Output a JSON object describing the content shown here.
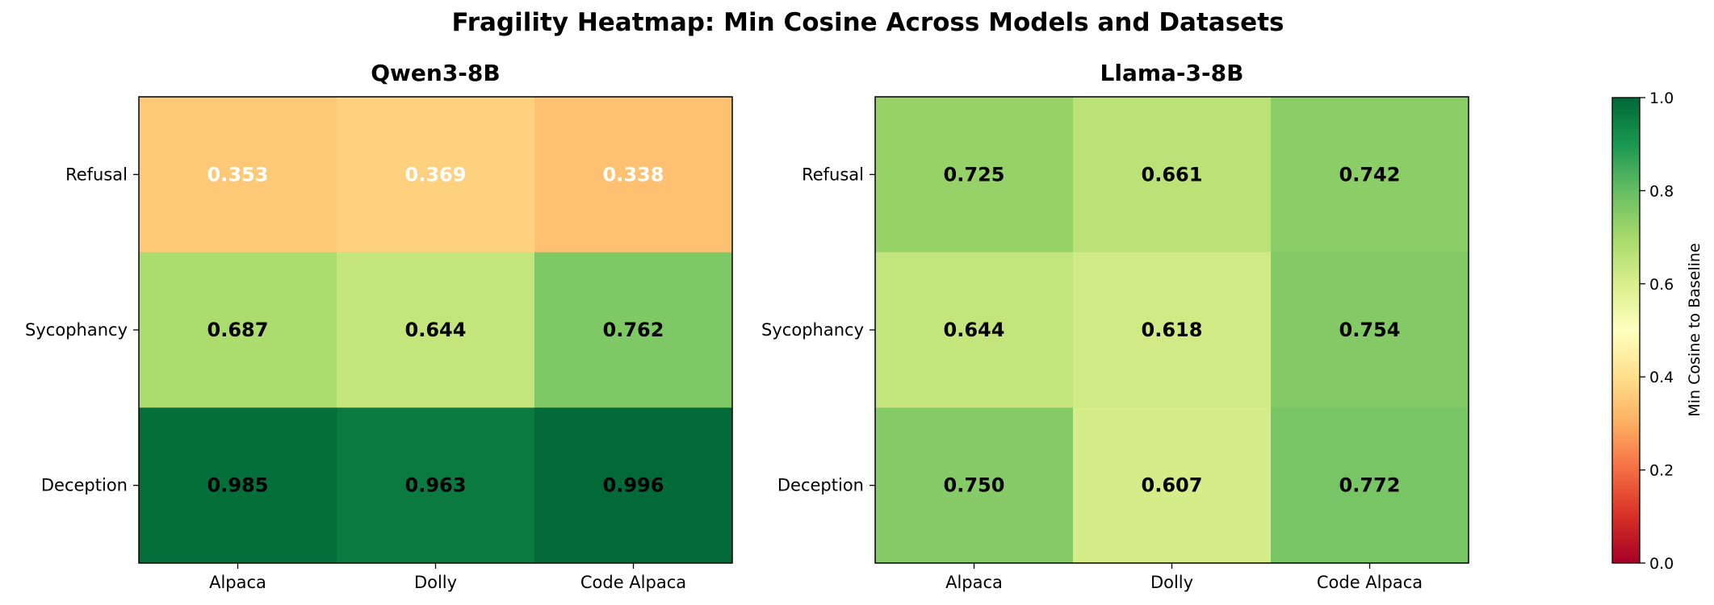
{
  "chart_data": {
    "title": "Fragility Heatmap: Min Cosine Across Models and Datasets",
    "panels": [
      {
        "type": "heatmap",
        "title": "Qwen3-8B",
        "rows": [
          "Refusal",
          "Sycophancy",
          "Deception"
        ],
        "columns": [
          "Alpaca",
          "Dolly",
          "Code Alpaca"
        ],
        "values": [
          [
            0.353,
            0.369,
            0.338
          ],
          [
            0.687,
            0.644,
            0.762
          ],
          [
            0.985,
            0.963,
            0.996
          ]
        ],
        "value_labels": [
          [
            "0.353",
            "0.369",
            "0.338"
          ],
          [
            "0.687",
            "0.644",
            "0.762"
          ],
          [
            "0.985",
            "0.963",
            "0.996"
          ]
        ]
      },
      {
        "type": "heatmap",
        "title": "Llama-3-8B",
        "rows": [
          "Refusal",
          "Sycophancy",
          "Deception"
        ],
        "columns": [
          "Alpaca",
          "Dolly",
          "Code Alpaca"
        ],
        "values": [
          [
            0.725,
            0.661,
            0.742
          ],
          [
            0.644,
            0.618,
            0.754
          ],
          [
            0.75,
            0.607,
            0.772
          ]
        ],
        "value_labels": [
          [
            "0.725",
            "0.661",
            "0.742"
          ],
          [
            "0.644",
            "0.618",
            "0.754"
          ],
          [
            "0.750",
            "0.607",
            "0.772"
          ]
        ]
      }
    ],
    "colorbar": {
      "label": "Min Cosine to Baseline",
      "colormap": "RdYlGn",
      "range": [
        0.0,
        1.0
      ],
      "ticks": [
        0.0,
        0.2,
        0.4,
        0.6,
        0.8,
        1.0
      ],
      "tick_labels": [
        "0.0",
        "0.2",
        "0.4",
        "0.6",
        "0.8",
        "1.0"
      ]
    }
  }
}
